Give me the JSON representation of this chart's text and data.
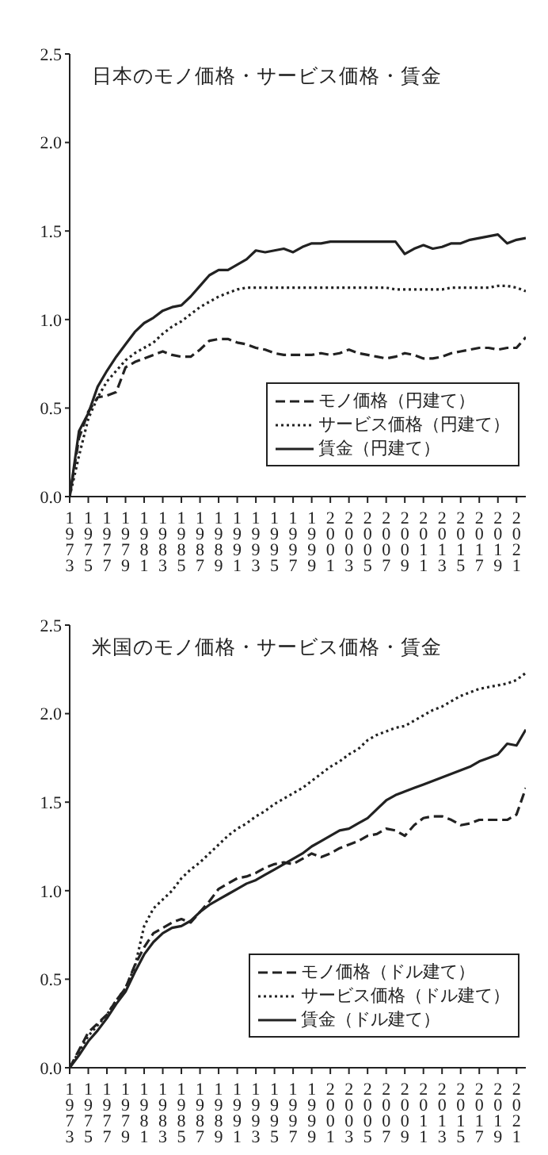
{
  "chart_data": [
    {
      "type": "line",
      "title": "日本のモノ価格・サービス価格・賃金",
      "x": [
        1973,
        1974,
        1975,
        1976,
        1977,
        1978,
        1979,
        1980,
        1981,
        1982,
        1983,
        1984,
        1985,
        1986,
        1987,
        1988,
        1989,
        1990,
        1991,
        1992,
        1993,
        1994,
        1995,
        1996,
        1997,
        1998,
        1999,
        2000,
        2001,
        2002,
        2003,
        2004,
        2005,
        2006,
        2007,
        2008,
        2009,
        2010,
        2011,
        2012,
        2013,
        2014,
        2015,
        2016,
        2017,
        2018,
        2019,
        2020,
        2021,
        2022
      ],
      "xlim": [
        1973,
        2022
      ],
      "xticks": [
        1973,
        1975,
        1977,
        1979,
        1981,
        1983,
        1985,
        1987,
        1989,
        1991,
        1993,
        1995,
        1997,
        1999,
        2001,
        2003,
        2005,
        2007,
        2009,
        2011,
        2013,
        2015,
        2017,
        2019,
        2021
      ],
      "ylim": [
        0,
        2.5
      ],
      "yticks": [
        {
          "value": 0,
          "label": "0.0"
        },
        {
          "value": 0.5,
          "label": "0.5"
        },
        {
          "value": 1,
          "label": "1.0"
        },
        {
          "value": 1.5,
          "label": "1.5"
        },
        {
          "value": 2,
          "label": "2.0"
        },
        {
          "value": 2.5,
          "label": "2.5"
        }
      ],
      "grid": false,
      "legend": "bottom right",
      "marker": "none",
      "series": [
        {
          "name": "モノ価格（円建て）",
          "color": "#222222",
          "line_style": "dashed",
          "values": [
            0,
            0.33,
            0.48,
            0.56,
            0.57,
            0.59,
            0.73,
            0.76,
            0.78,
            0.8,
            0.82,
            0.8,
            0.79,
            0.79,
            0.83,
            0.88,
            0.89,
            0.89,
            0.87,
            0.86,
            0.84,
            0.83,
            0.81,
            0.8,
            0.8,
            0.8,
            0.8,
            0.81,
            0.8,
            0.81,
            0.83,
            0.81,
            0.8,
            0.79,
            0.78,
            0.79,
            0.81,
            0.8,
            0.78,
            0.78,
            0.79,
            0.81,
            0.82,
            0.83,
            0.84,
            0.84,
            0.83,
            0.84,
            0.84,
            0.9
          ]
        },
        {
          "name": "サービス価格（円建て）",
          "color": "#222222",
          "line_style": "dotted",
          "values": [
            0,
            0.23,
            0.44,
            0.56,
            0.65,
            0.71,
            0.77,
            0.81,
            0.84,
            0.87,
            0.92,
            0.96,
            0.99,
            1.03,
            1.07,
            1.1,
            1.13,
            1.15,
            1.17,
            1.18,
            1.18,
            1.18,
            1.18,
            1.18,
            1.18,
            1.18,
            1.18,
            1.18,
            1.18,
            1.18,
            1.18,
            1.18,
            1.18,
            1.18,
            1.18,
            1.17,
            1.17,
            1.17,
            1.17,
            1.17,
            1.17,
            1.18,
            1.18,
            1.18,
            1.18,
            1.18,
            1.19,
            1.19,
            1.18,
            1.16
          ]
        },
        {
          "name": "賃金（円建て）",
          "color": "#222222",
          "line_style": "solid",
          "values": [
            0,
            0.37,
            0.47,
            0.62,
            0.71,
            0.79,
            0.86,
            0.93,
            0.98,
            1.01,
            1.05,
            1.07,
            1.08,
            1.13,
            1.19,
            1.25,
            1.28,
            1.28,
            1.31,
            1.34,
            1.39,
            1.38,
            1.39,
            1.4,
            1.38,
            1.41,
            1.43,
            1.43,
            1.44,
            1.44,
            1.44,
            1.44,
            1.44,
            1.44,
            1.44,
            1.44,
            1.37,
            1.4,
            1.42,
            1.4,
            1.41,
            1.43,
            1.43,
            1.45,
            1.46,
            1.47,
            1.48,
            1.43,
            1.45,
            1.46
          ]
        }
      ]
    },
    {
      "type": "line",
      "title": "米国のモノ価格・サービス価格・賃金",
      "x": [
        1973,
        1974,
        1975,
        1976,
        1977,
        1978,
        1979,
        1980,
        1981,
        1982,
        1983,
        1984,
        1985,
        1986,
        1987,
        1988,
        1989,
        1990,
        1991,
        1992,
        1993,
        1994,
        1995,
        1996,
        1997,
        1998,
        1999,
        2000,
        2001,
        2002,
        2003,
        2004,
        2005,
        2006,
        2007,
        2008,
        2009,
        2010,
        2011,
        2012,
        2013,
        2014,
        2015,
        2016,
        2017,
        2018,
        2019,
        2020,
        2021,
        2022
      ],
      "xlim": [
        1973,
        2022
      ],
      "xticks": [
        1973,
        1975,
        1977,
        1979,
        1981,
        1983,
        1985,
        1987,
        1989,
        1991,
        1993,
        1995,
        1997,
        1999,
        2001,
        2003,
        2005,
        2007,
        2009,
        2011,
        2013,
        2015,
        2017,
        2019,
        2021
      ],
      "ylim": [
        0,
        2.5
      ],
      "yticks": [
        {
          "value": 0,
          "label": "0.0"
        },
        {
          "value": 0.5,
          "label": "0.5"
        },
        {
          "value": 1,
          "label": "1.0"
        },
        {
          "value": 1.5,
          "label": "1.5"
        },
        {
          "value": 2,
          "label": "2.0"
        },
        {
          "value": 2.5,
          "label": "2.5"
        }
      ],
      "grid": false,
      "legend": "bottom right",
      "marker": "none",
      "series": [
        {
          "name": "モノ価格（ドル建て）",
          "color": "#222222",
          "line_style": "dashed",
          "values": [
            0,
            0.1,
            0.2,
            0.25,
            0.3,
            0.38,
            0.45,
            0.58,
            0.68,
            0.76,
            0.79,
            0.82,
            0.84,
            0.82,
            0.88,
            0.94,
            1.01,
            1.04,
            1.07,
            1.08,
            1.1,
            1.13,
            1.15,
            1.16,
            1.15,
            1.18,
            1.21,
            1.19,
            1.21,
            1.24,
            1.26,
            1.28,
            1.31,
            1.32,
            1.35,
            1.34,
            1.31,
            1.37,
            1.41,
            1.42,
            1.42,
            1.4,
            1.37,
            1.38,
            1.4,
            1.4,
            1.4,
            1.4,
            1.43,
            1.58
          ]
        },
        {
          "name": "サービス価格（ドル建て）",
          "color": "#222222",
          "line_style": "dotted",
          "values": [
            0,
            0.09,
            0.18,
            0.24,
            0.3,
            0.38,
            0.45,
            0.57,
            0.8,
            0.9,
            0.95,
            1,
            1.07,
            1.12,
            1.16,
            1.21,
            1.26,
            1.31,
            1.35,
            1.38,
            1.42,
            1.45,
            1.49,
            1.52,
            1.55,
            1.58,
            1.62,
            1.66,
            1.7,
            1.73,
            1.77,
            1.8,
            1.85,
            1.88,
            1.9,
            1.92,
            1.93,
            1.96,
            1.99,
            2.02,
            2.04,
            2.07,
            2.1,
            2.12,
            2.14,
            2.15,
            2.16,
            2.17,
            2.19,
            2.23
          ]
        },
        {
          "name": "賃金（ドル建て）",
          "color": "#222222",
          "line_style": "solid",
          "values": [
            0,
            0.07,
            0.15,
            0.21,
            0.28,
            0.36,
            0.43,
            0.54,
            0.64,
            0.71,
            0.76,
            0.79,
            0.8,
            0.83,
            0.88,
            0.92,
            0.95,
            0.98,
            1.01,
            1.04,
            1.06,
            1.09,
            1.12,
            1.15,
            1.18,
            1.21,
            1.25,
            1.28,
            1.31,
            1.34,
            1.35,
            1.38,
            1.41,
            1.46,
            1.51,
            1.54,
            1.56,
            1.58,
            1.6,
            1.62,
            1.64,
            1.66,
            1.68,
            1.7,
            1.73,
            1.75,
            1.77,
            1.83,
            1.82,
            1.91
          ]
        }
      ]
    }
  ]
}
